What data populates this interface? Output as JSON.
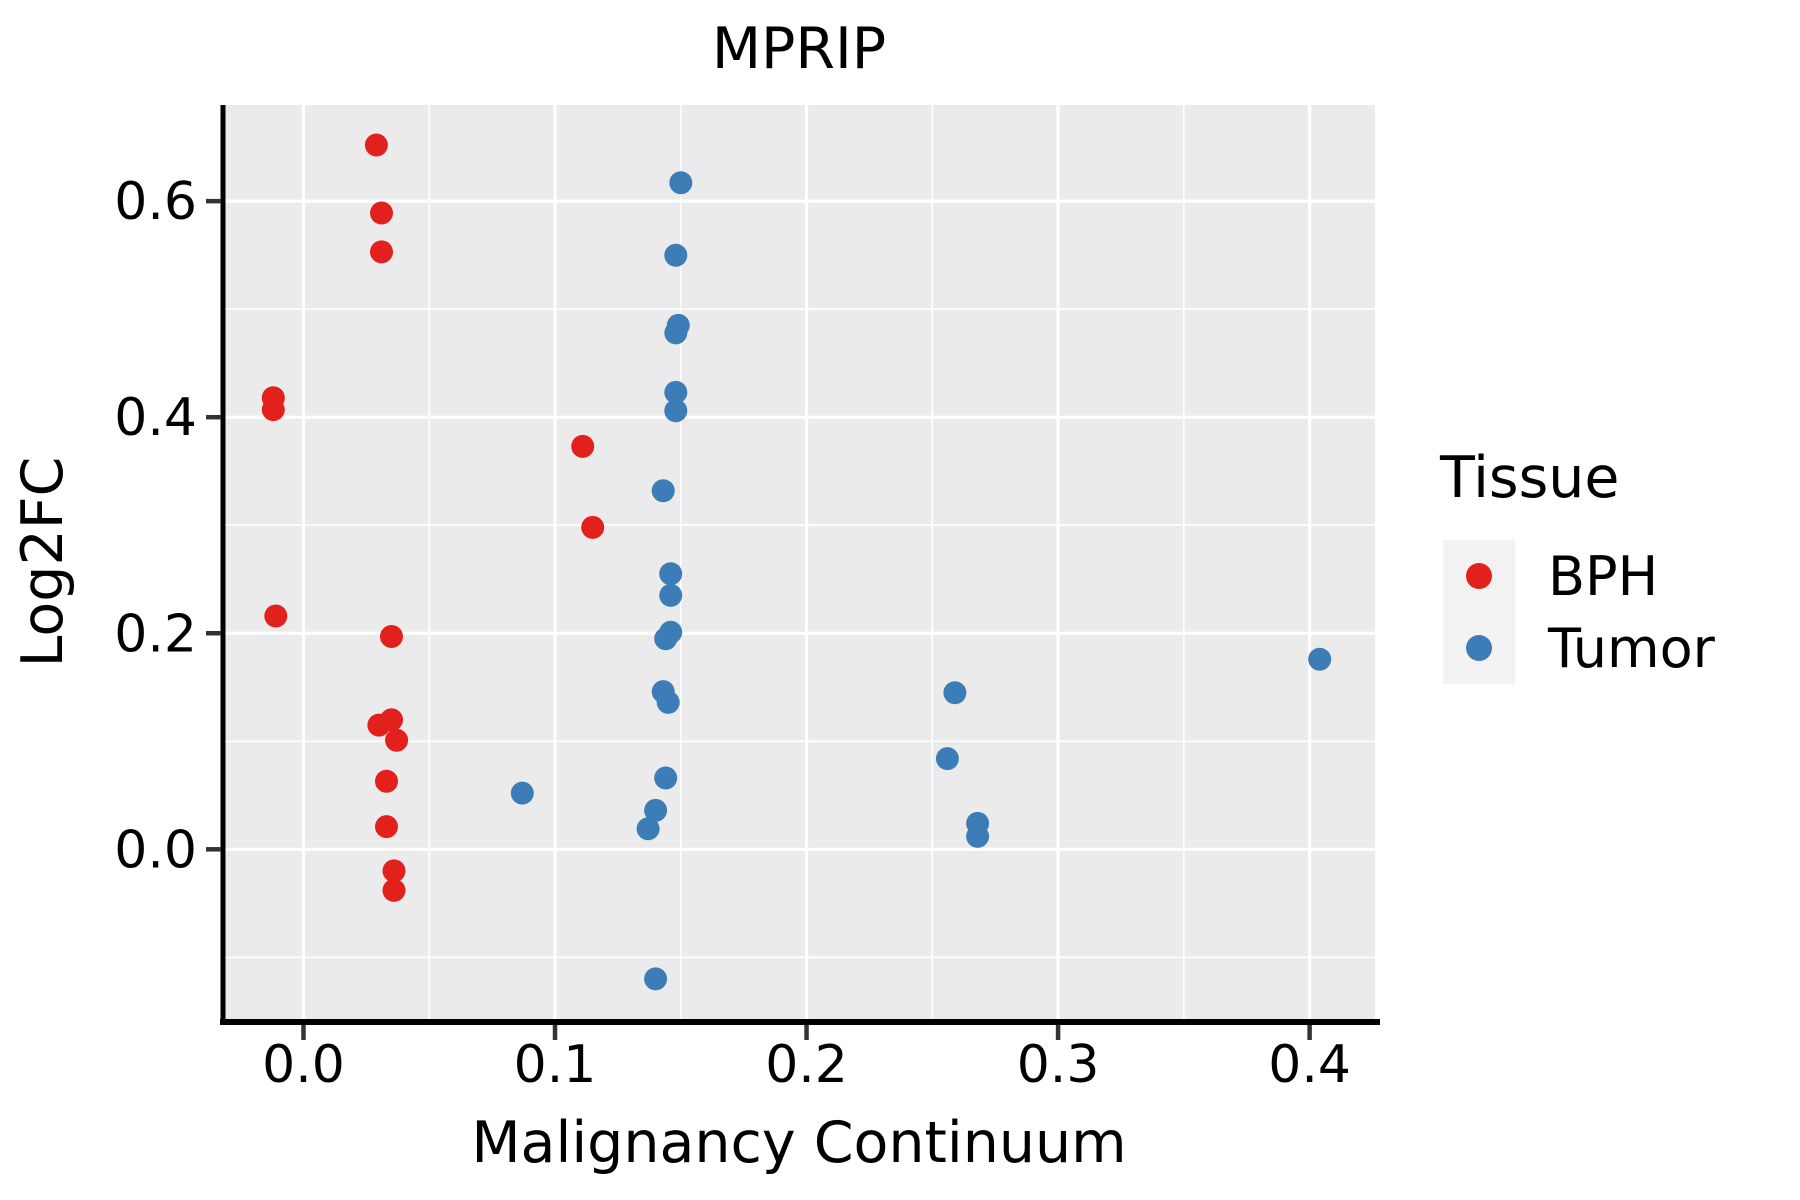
{
  "title": "MPRIP",
  "chart_data": {
    "type": "scatter",
    "title": "MPRIP",
    "xlabel": "Malignancy Continuum",
    "ylabel": "Log2FC",
    "xlim": [
      -0.032,
      0.426
    ],
    "ylim": [
      -0.158,
      0.689
    ],
    "x_ticks": [
      0.0,
      0.1,
      0.2,
      0.3,
      0.4
    ],
    "x_tick_labels": [
      "0.0",
      "0.1",
      "0.2",
      "0.3",
      "0.4"
    ],
    "y_ticks": [
      0.0,
      0.2,
      0.4,
      0.6
    ],
    "y_tick_labels": [
      "0.0",
      "0.2",
      "0.4",
      "0.6"
    ],
    "x_minor_ticks": [
      0.05,
      0.15,
      0.25,
      0.35
    ],
    "y_minor_ticks": [
      -0.1,
      0.1,
      0.3,
      0.5
    ],
    "grid": true,
    "legend_position": "right",
    "panel_bg": "#EBEBEB",
    "grid_color": "#FFFFFF",
    "axis_color": "#000000",
    "legend": {
      "title": "Tissue",
      "key_bg": "#F2F2F2"
    },
    "series": [
      {
        "name": "BPH",
        "color": "#E2201C",
        "points": [
          [
            -0.012,
            0.418
          ],
          [
            -0.012,
            0.407
          ],
          [
            -0.011,
            0.216
          ],
          [
            0.029,
            0.652
          ],
          [
            0.031,
            0.589
          ],
          [
            0.031,
            0.553
          ],
          [
            0.035,
            0.197
          ],
          [
            0.035,
            0.12
          ],
          [
            0.03,
            0.115
          ],
          [
            0.037,
            0.101
          ],
          [
            0.033,
            0.063
          ],
          [
            0.033,
            0.021
          ],
          [
            0.036,
            -0.02
          ],
          [
            0.036,
            -0.038
          ],
          [
            0.111,
            0.373
          ],
          [
            0.115,
            0.298
          ]
        ]
      },
      {
        "name": "Tumor",
        "color": "#3D7DB7",
        "points": [
          [
            0.087,
            0.052
          ],
          [
            0.137,
            0.019
          ],
          [
            0.14,
            0.036
          ],
          [
            0.144,
            0.066
          ],
          [
            0.14,
            -0.12
          ],
          [
            0.143,
            0.146
          ],
          [
            0.145,
            0.136
          ],
          [
            0.144,
            0.195
          ],
          [
            0.146,
            0.201
          ],
          [
            0.146,
            0.235
          ],
          [
            0.146,
            0.255
          ],
          [
            0.143,
            0.332
          ],
          [
            0.148,
            0.406
          ],
          [
            0.148,
            0.423
          ],
          [
            0.149,
            0.485
          ],
          [
            0.148,
            0.478
          ],
          [
            0.148,
            0.55
          ],
          [
            0.15,
            0.617
          ],
          [
            0.256,
            0.084
          ],
          [
            0.259,
            0.145
          ],
          [
            0.268,
            0.024
          ],
          [
            0.268,
            0.012
          ],
          [
            0.404,
            0.176
          ]
        ]
      }
    ]
  }
}
